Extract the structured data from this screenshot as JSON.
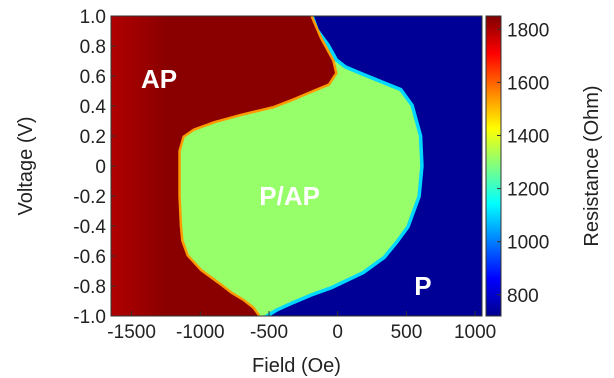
{
  "chart_data": {
    "type": "heatmap",
    "xlabel": "Field (Oe)",
    "ylabel": "Voltage (V)",
    "colorbar_label": "Resistance (Ohm)",
    "xlim": [
      -1650,
      1050
    ],
    "ylim": [
      -1.0,
      1.0
    ],
    "x_ticks": [
      -1500,
      -1000,
      -500,
      0,
      500,
      1000
    ],
    "x_tick_labels": [
      "-1500",
      "-1000",
      "-500",
      "0",
      "500",
      "1000"
    ],
    "y_ticks": [
      1.0,
      0.8,
      0.6,
      0.4,
      0.2,
      0.0,
      -0.2,
      -0.4,
      -0.6,
      -0.8,
      -1.0
    ],
    "y_tick_labels": [
      "1.0",
      "0.8",
      "0.6",
      "0.4",
      "0.2",
      "0",
      "-0.2",
      "-0.4",
      "-0.6",
      "-0.8",
      "-1.0"
    ],
    "colorbar_range": [
      720,
      1850
    ],
    "colorbar_ticks": [
      800,
      1000,
      1200,
      1400,
      1600,
      1800
    ],
    "colorbar_tick_labels": [
      "800",
      "1000",
      "1200",
      "1400",
      "1600",
      "1800"
    ],
    "colormap": "jet",
    "region_labels": [
      {
        "text": "AP",
        "field": -1300,
        "voltage": 0.58
      },
      {
        "text": "P/AP",
        "field": -350,
        "voltage": -0.2
      },
      {
        "text": "P",
        "field": 620,
        "voltage": -0.8
      }
    ],
    "regions": {
      "AP_resistance": 1830,
      "PAP_resistance": 1310,
      "P_resistance": 745,
      "AP_to_PAP_boundary": {
        "voltage": [
          1.0,
          0.85,
          0.7,
          0.62,
          0.55,
          0.5,
          0.45,
          0.4,
          0.35,
          0.3,
          0.25,
          0.2,
          0.1,
          0.0,
          -0.2,
          -0.4,
          -0.5,
          -0.6,
          -0.7,
          -0.8,
          -0.85,
          -0.9,
          -0.95,
          -1.0
        ],
        "field": [
          -200,
          -130,
          -40,
          -20,
          -70,
          -200,
          -330,
          -470,
          -700,
          -900,
          -1050,
          -1130,
          -1160,
          -1160,
          -1160,
          -1150,
          -1140,
          -1100,
          -1000,
          -850,
          -780,
          -690,
          -620,
          -580
        ]
      },
      "PAP_to_P_boundary": {
        "voltage": [
          1.0,
          0.9,
          0.8,
          0.7,
          0.65,
          0.6,
          0.5,
          0.4,
          0.2,
          0.0,
          -0.2,
          -0.4,
          -0.5,
          -0.6,
          -0.7,
          -0.8,
          -0.85,
          -0.9,
          -0.95,
          -1.0
        ],
        "field": [
          -200,
          -160,
          -80,
          -20,
          50,
          180,
          450,
          530,
          590,
          600,
          580,
          500,
          420,
          330,
          180,
          -50,
          -200,
          -330,
          -450,
          -540
        ]
      }
    }
  }
}
